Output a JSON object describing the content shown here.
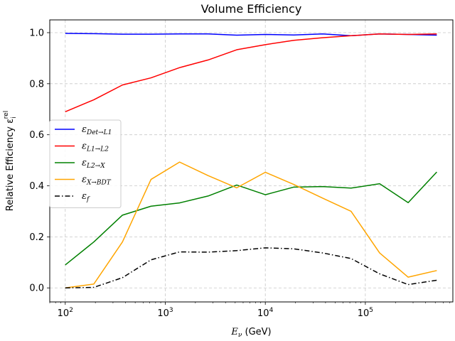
{
  "chart_data": {
    "type": "line",
    "title": "Volume Efficiency",
    "xlabel": {
      "main": "E",
      "sub": "ν",
      "unit": " (GeV)"
    },
    "ylabel": {
      "main": "Relative Efficiency ε",
      "sub": "i",
      "sup": "rel"
    },
    "xscale": "log",
    "xlim": [
      70,
      750000
    ],
    "ylim": [
      -0.055,
      1.05
    ],
    "grid": true,
    "legend_position": "center-left",
    "x_ticks": [
      {
        "value": 100,
        "base": "10",
        "exp": "2"
      },
      {
        "value": 1000,
        "base": "10",
        "exp": "3"
      },
      {
        "value": 10000,
        "base": "10",
        "exp": "4"
      },
      {
        "value": 100000,
        "base": "10",
        "exp": "5"
      }
    ],
    "y_ticks": [
      "0.0",
      "0.2",
      "0.4",
      "0.6",
      "0.8",
      "1.0"
    ],
    "x": [
      100,
      193,
      373,
      720,
      1390,
      2680,
      5180,
      10000,
      19300,
      37300,
      72000,
      139000,
      268000,
      518000
    ],
    "series": [
      {
        "name": {
          "main": "ε",
          "sub": "Det→L1"
        },
        "color": "#0000ff",
        "dash": "solid",
        "values": [
          0.997,
          0.996,
          0.994,
          0.994,
          0.995,
          0.995,
          0.99,
          0.993,
          0.991,
          0.995,
          0.988,
          0.995,
          0.993,
          0.99
        ]
      },
      {
        "name": {
          "main": "ε",
          "sub": "L1→L2"
        },
        "color": "#ff0000",
        "dash": "solid",
        "values": [
          0.69,
          0.737,
          0.795,
          0.823,
          0.863,
          0.893,
          0.933,
          0.953,
          0.97,
          0.98,
          0.988,
          0.995,
          0.993,
          0.995
        ]
      },
      {
        "name": {
          "main": "ε",
          "sub": "L2→X"
        },
        "color": "#008000",
        "dash": "solid",
        "values": [
          0.09,
          0.18,
          0.285,
          0.32,
          0.333,
          0.36,
          0.403,
          0.365,
          0.395,
          0.397,
          0.391,
          0.408,
          0.334,
          0.454
        ]
      },
      {
        "name": {
          "main": "ε",
          "sub": "X→BDT"
        },
        "color": "#ffa500",
        "dash": "solid",
        "values": [
          0.0,
          0.015,
          0.18,
          0.425,
          0.493,
          0.44,
          0.392,
          0.453,
          0.405,
          0.352,
          0.3,
          0.137,
          0.042,
          0.068
        ]
      },
      {
        "name": {
          "main": "ε",
          "sub": "f"
        },
        "color": "#000000",
        "dash": "dashdot",
        "values": [
          0.0,
          0.002,
          0.04,
          0.11,
          0.141,
          0.14,
          0.146,
          0.157,
          0.153,
          0.137,
          0.115,
          0.055,
          0.013,
          0.03
        ]
      }
    ]
  }
}
